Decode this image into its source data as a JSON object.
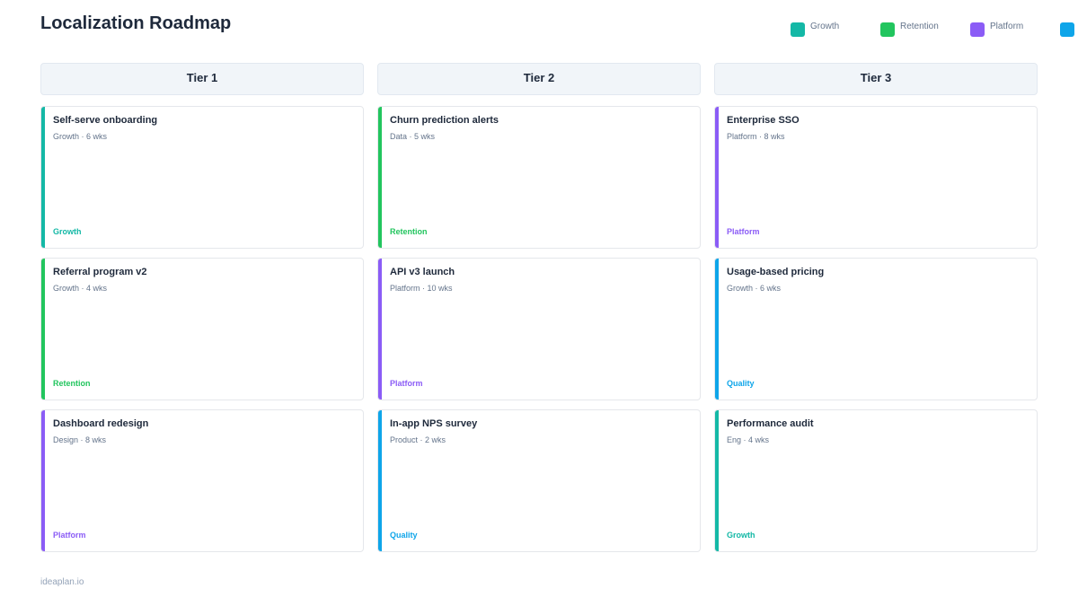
{
  "header": {
    "title": "Localization Roadmap"
  },
  "legend": [
    {
      "label": "Growth",
      "color": "#14b8a6"
    },
    {
      "label": "Retention",
      "color": "#22c55e"
    },
    {
      "label": "Platform",
      "color": "#8b5cf6"
    }
  ],
  "columns": [
    {
      "title": "Tier 1",
      "cards": [
        {
          "title": "Self-serve onboarding",
          "meta": "Growth · 6 wks",
          "tag": "Growth",
          "color": "#14b8a6"
        },
        {
          "title": "Referral program v2",
          "meta": "Growth · 4 wks",
          "tag": "Retention",
          "color": "#22c55e"
        },
        {
          "title": "Dashboard redesign",
          "meta": "Design · 8 wks",
          "tag": "Platform",
          "color": "#8b5cf6"
        }
      ]
    },
    {
      "title": "Tier 2",
      "cards": [
        {
          "title": "Churn prediction alerts",
          "meta": "Data · 5 wks",
          "tag": "Retention",
          "color": "#22c55e"
        },
        {
          "title": "API v3 launch",
          "meta": "Platform · 10 wks",
          "tag": "Platform",
          "color": "#8b5cf6"
        },
        {
          "title": "In-app NPS survey",
          "meta": "Product · 2 wks",
          "tag": "Quality",
          "color": "#0ea5e9"
        }
      ]
    },
    {
      "title": "Tier 3",
      "cards": [
        {
          "title": "Enterprise SSO",
          "meta": "Platform · 8 wks",
          "tag": "Platform",
          "color": "#8b5cf6"
        },
        {
          "title": "Usage-based pricing",
          "meta": "Growth · 6 wks",
          "tag": "Quality",
          "color": "#0ea5e9"
        },
        {
          "title": "Performance audit",
          "meta": "Eng · 4 wks",
          "tag": "Growth",
          "color": "#14b8a6"
        }
      ]
    }
  ],
  "footer": "ideaplan.io"
}
